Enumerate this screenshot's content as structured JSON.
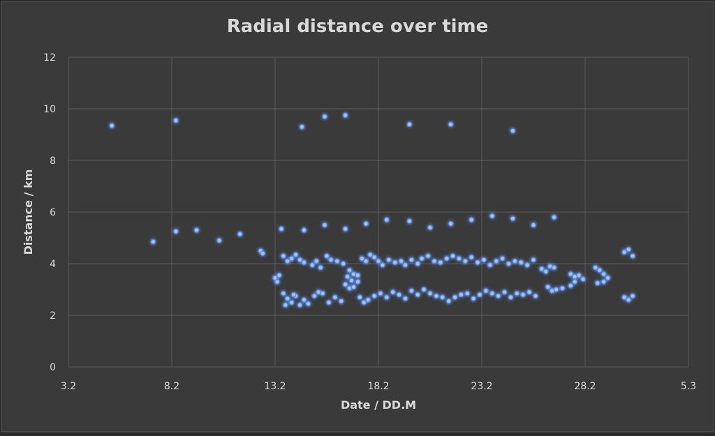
{
  "chart_data": {
    "type": "scatter",
    "title": "Radial distance over time",
    "xlabel": "Date / DD.M",
    "ylabel": "Distance / km",
    "x_ticks": [
      "3.2",
      "8.2",
      "13.2",
      "18.2",
      "23.2",
      "28.2",
      "5.3"
    ],
    "y_ticks": [
      "0",
      "2",
      "4",
      "6",
      "8",
      "10",
      "12"
    ],
    "xlim": [
      3,
      33
    ],
    "ylim": [
      0,
      12
    ],
    "grid": true,
    "legend": "none",
    "colors": {
      "background": "#3a3a3a",
      "point_fill": "#9fc3ff",
      "point_glow": "#4f86e6",
      "grid": "#5a5a5a",
      "text": "#d9d9d9"
    },
    "series": [
      {
        "points": [
          [
            5.1,
            9.35
          ],
          [
            8.2,
            9.55
          ],
          [
            14.3,
            9.3
          ],
          [
            15.4,
            9.7
          ],
          [
            16.4,
            9.75
          ],
          [
            19.5,
            9.4
          ],
          [
            21.5,
            9.4
          ],
          [
            24.5,
            9.15
          ],
          [
            7.1,
            4.85
          ],
          [
            8.2,
            5.25
          ],
          [
            9.2,
            5.3
          ],
          [
            10.3,
            4.9
          ],
          [
            11.3,
            5.15
          ],
          [
            13.3,
            5.35
          ],
          [
            14.4,
            5.3
          ],
          [
            15.4,
            5.5
          ],
          [
            16.4,
            5.35
          ],
          [
            17.4,
            5.55
          ],
          [
            18.4,
            5.7
          ],
          [
            19.5,
            5.65
          ],
          [
            20.5,
            5.4
          ],
          [
            21.5,
            5.55
          ],
          [
            22.5,
            5.7
          ],
          [
            23.5,
            5.85
          ],
          [
            24.5,
            5.75
          ],
          [
            25.5,
            5.5
          ],
          [
            26.5,
            5.8
          ],
          [
            12.3,
            4.5
          ],
          [
            12.4,
            4.4
          ],
          [
            13.4,
            4.3
          ],
          [
            13.6,
            4.1
          ],
          [
            13.8,
            4.2
          ],
          [
            14.0,
            4.35
          ],
          [
            14.2,
            4.15
          ],
          [
            14.4,
            4.05
          ],
          [
            14.8,
            3.95
          ],
          [
            15.0,
            4.1
          ],
          [
            15.2,
            3.85
          ],
          [
            15.5,
            4.3
          ],
          [
            15.7,
            4.15
          ],
          [
            16.0,
            4.1
          ],
          [
            16.3,
            4.0
          ],
          [
            16.6,
            3.75
          ],
          [
            16.8,
            3.6
          ],
          [
            16.5,
            3.5
          ],
          [
            16.7,
            3.35
          ],
          [
            16.4,
            3.2
          ],
          [
            16.6,
            3.05
          ],
          [
            16.8,
            3.1
          ],
          [
            17.0,
            3.3
          ],
          [
            17.0,
            3.55
          ],
          [
            17.2,
            4.2
          ],
          [
            17.4,
            4.1
          ],
          [
            17.6,
            4.35
          ],
          [
            17.8,
            4.25
          ],
          [
            18.0,
            4.1
          ],
          [
            18.2,
            3.95
          ],
          [
            18.5,
            4.15
          ],
          [
            18.8,
            4.05
          ],
          [
            19.1,
            4.1
          ],
          [
            19.3,
            3.95
          ],
          [
            19.6,
            4.15
          ],
          [
            19.9,
            4.0
          ],
          [
            20.1,
            4.2
          ],
          [
            20.4,
            4.3
          ],
          [
            20.7,
            4.1
          ],
          [
            21.0,
            4.05
          ],
          [
            21.3,
            4.2
          ],
          [
            21.6,
            4.3
          ],
          [
            21.9,
            4.2
          ],
          [
            22.2,
            4.1
          ],
          [
            22.5,
            4.25
          ],
          [
            22.8,
            4.05
          ],
          [
            23.1,
            4.15
          ],
          [
            23.4,
            3.95
          ],
          [
            23.7,
            4.1
          ],
          [
            24.0,
            4.2
          ],
          [
            24.3,
            4.0
          ],
          [
            24.6,
            4.1
          ],
          [
            24.9,
            4.05
          ],
          [
            25.2,
            3.95
          ],
          [
            25.5,
            4.15
          ],
          [
            25.9,
            3.8
          ],
          [
            26.1,
            3.7
          ],
          [
            26.3,
            3.9
          ],
          [
            26.5,
            3.85
          ],
          [
            27.3,
            3.6
          ],
          [
            27.5,
            3.5
          ],
          [
            27.7,
            3.55
          ],
          [
            27.9,
            3.4
          ],
          [
            27.5,
            3.3
          ],
          [
            27.3,
            3.15
          ],
          [
            28.5,
            3.85
          ],
          [
            28.7,
            3.75
          ],
          [
            28.9,
            3.6
          ],
          [
            29.1,
            3.45
          ],
          [
            28.9,
            3.3
          ],
          [
            28.6,
            3.25
          ],
          [
            29.9,
            4.45
          ],
          [
            30.1,
            4.55
          ],
          [
            30.3,
            4.3
          ],
          [
            13.0,
            3.45
          ],
          [
            13.1,
            3.3
          ],
          [
            13.2,
            3.55
          ],
          [
            13.4,
            2.85
          ],
          [
            13.6,
            2.65
          ],
          [
            13.8,
            2.5
          ],
          [
            14.0,
            2.75
          ],
          [
            14.2,
            2.4
          ],
          [
            14.4,
            2.6
          ],
          [
            14.6,
            2.45
          ],
          [
            13.5,
            2.4
          ],
          [
            13.9,
            2.8
          ],
          [
            14.9,
            2.75
          ],
          [
            15.1,
            2.9
          ],
          [
            15.3,
            2.85
          ],
          [
            15.6,
            2.5
          ],
          [
            15.9,
            2.7
          ],
          [
            16.2,
            2.55
          ],
          [
            17.1,
            2.7
          ],
          [
            17.3,
            2.5
          ],
          [
            17.5,
            2.6
          ],
          [
            17.8,
            2.75
          ],
          [
            18.1,
            2.85
          ],
          [
            18.4,
            2.7
          ],
          [
            18.7,
            2.9
          ],
          [
            19.0,
            2.8
          ],
          [
            19.3,
            2.65
          ],
          [
            19.6,
            2.95
          ],
          [
            19.9,
            2.8
          ],
          [
            20.2,
            3.0
          ],
          [
            20.5,
            2.85
          ],
          [
            20.8,
            2.75
          ],
          [
            21.1,
            2.7
          ],
          [
            21.4,
            2.55
          ],
          [
            21.7,
            2.7
          ],
          [
            22.0,
            2.8
          ],
          [
            22.3,
            2.85
          ],
          [
            22.6,
            2.65
          ],
          [
            22.9,
            2.8
          ],
          [
            23.2,
            2.95
          ],
          [
            23.5,
            2.85
          ],
          [
            23.8,
            2.75
          ],
          [
            24.1,
            2.9
          ],
          [
            24.4,
            2.7
          ],
          [
            24.7,
            2.85
          ],
          [
            25.0,
            2.8
          ],
          [
            25.3,
            2.9
          ],
          [
            25.6,
            2.75
          ],
          [
            26.2,
            3.1
          ],
          [
            26.4,
            2.95
          ],
          [
            26.6,
            3.0
          ],
          [
            26.9,
            3.05
          ],
          [
            29.9,
            2.7
          ],
          [
            30.1,
            2.6
          ],
          [
            30.3,
            2.75
          ]
        ]
      }
    ]
  }
}
